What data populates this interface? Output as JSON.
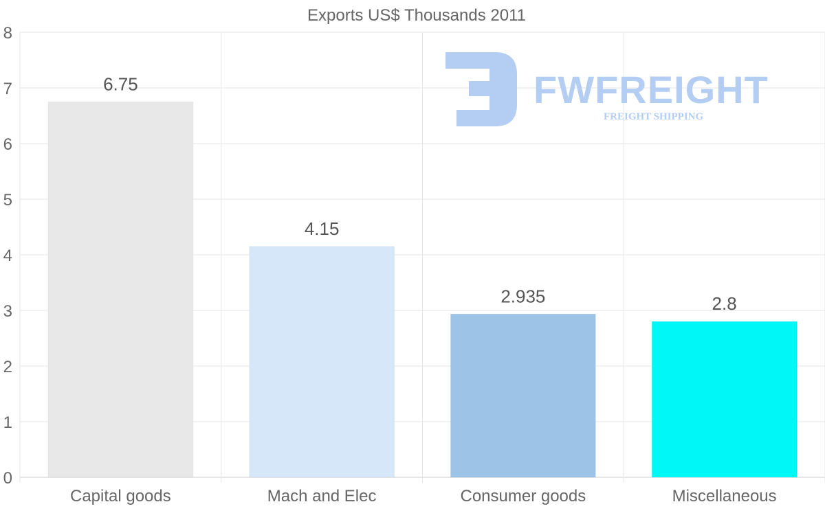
{
  "chart_data": {
    "type": "bar",
    "title": "Exports US$ Thousands 2011",
    "categories": [
      "Capital goods",
      "Mach and Elec",
      "Consumer goods",
      "Miscellaneous"
    ],
    "values": [
      6.75,
      4.15,
      2.935,
      2.8
    ],
    "value_labels": [
      "6.75",
      "4.15",
      "2.935",
      "2.8"
    ],
    "colors": [
      "#e8e8e8",
      "#d6e7fa",
      "#9dc3e6",
      "#00f7f7"
    ],
    "xlabel": "",
    "ylabel": "",
    "ylim": [
      0,
      8
    ],
    "yticks": [
      0,
      1,
      2,
      3,
      4,
      5,
      6,
      7,
      8
    ],
    "grid": true,
    "legend": false
  },
  "watermark": {
    "brand": "FWFREIGHT",
    "tagline": "FREIGHT SHIPPING",
    "color": "#b3cdf3"
  }
}
